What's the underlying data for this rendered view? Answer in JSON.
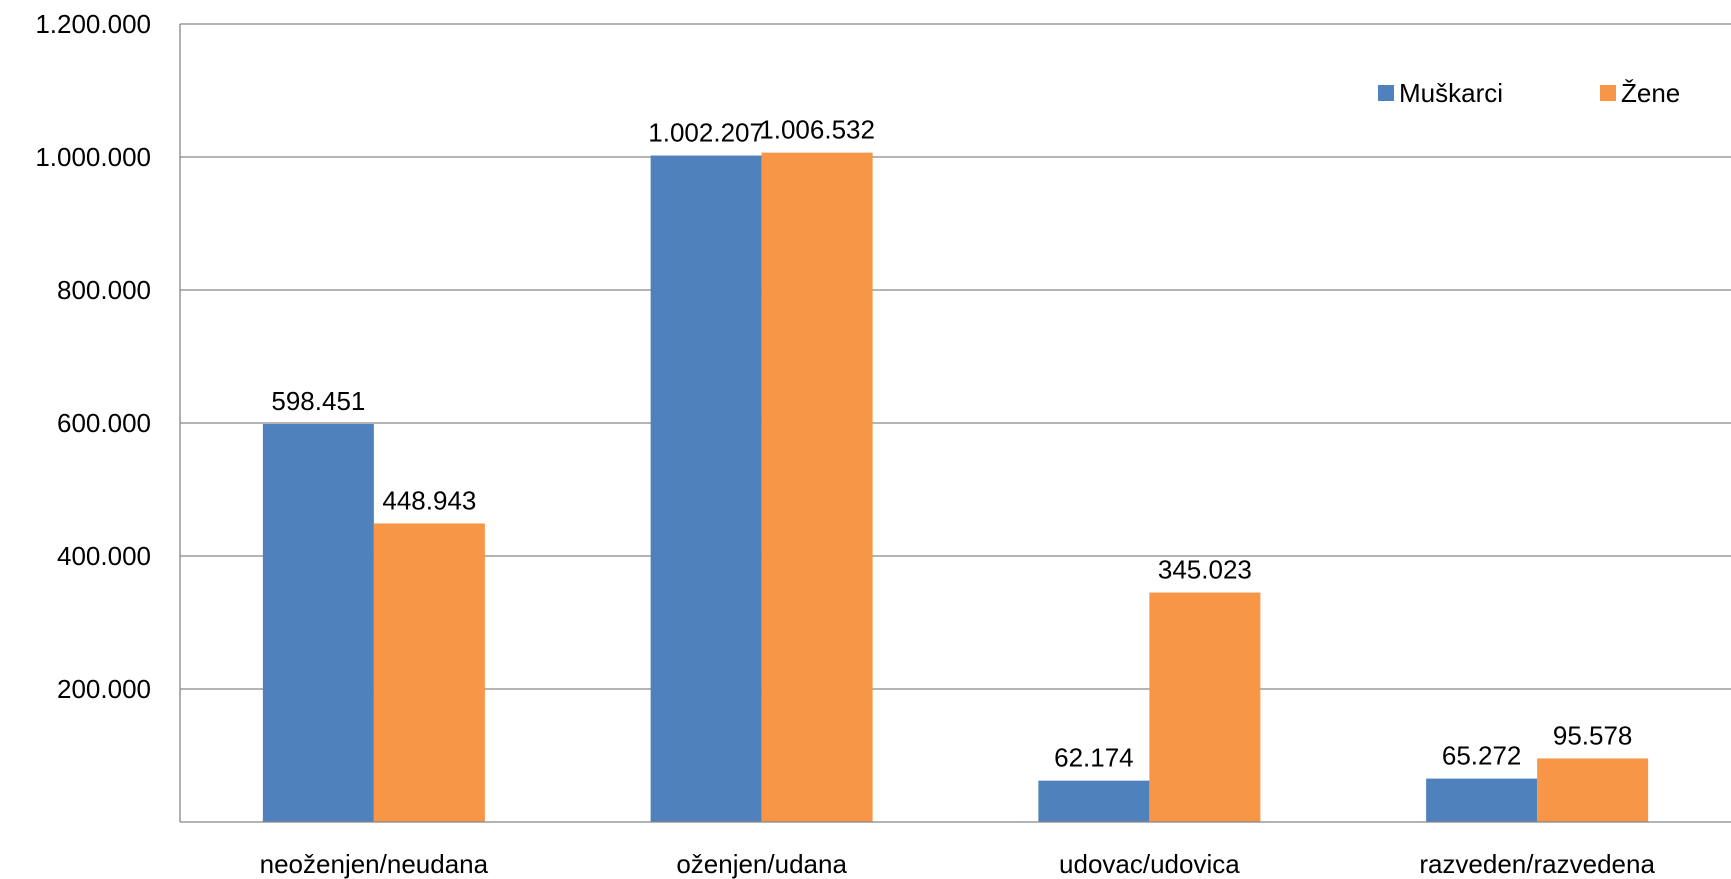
{
  "chart_data": {
    "type": "bar",
    "categories": [
      "neoženjen/neudana",
      "oženjen/udana",
      "udovac/udovica",
      "razveden/razvedena"
    ],
    "series": [
      {
        "name": "Muškarci",
        "color": "#4F81BD",
        "values": [
          598451,
          1002207,
          62174,
          65272
        ],
        "labels": [
          "598.451",
          "1.002.207",
          "62.174",
          "65.272"
        ]
      },
      {
        "name": "Žene",
        "color": "#F79646",
        "values": [
          448943,
          1006532,
          345023,
          95578
        ],
        "labels": [
          "448.943",
          "1.006.532",
          "345.023",
          "95.578"
        ]
      }
    ],
    "yticks": [
      {
        "value": 200000,
        "label": "200.000"
      },
      {
        "value": 400000,
        "label": "400.000"
      },
      {
        "value": 600000,
        "label": "600.000"
      },
      {
        "value": 800000,
        "label": "800.000"
      },
      {
        "value": 1000000,
        "label": "1.000.000"
      },
      {
        "value": 1200000,
        "label": "1.200.000"
      }
    ],
    "ylim": [
      0,
      1200000
    ],
    "grid": true,
    "legend_position": "top-right",
    "title": "",
    "xlabel": "",
    "ylabel": ""
  }
}
